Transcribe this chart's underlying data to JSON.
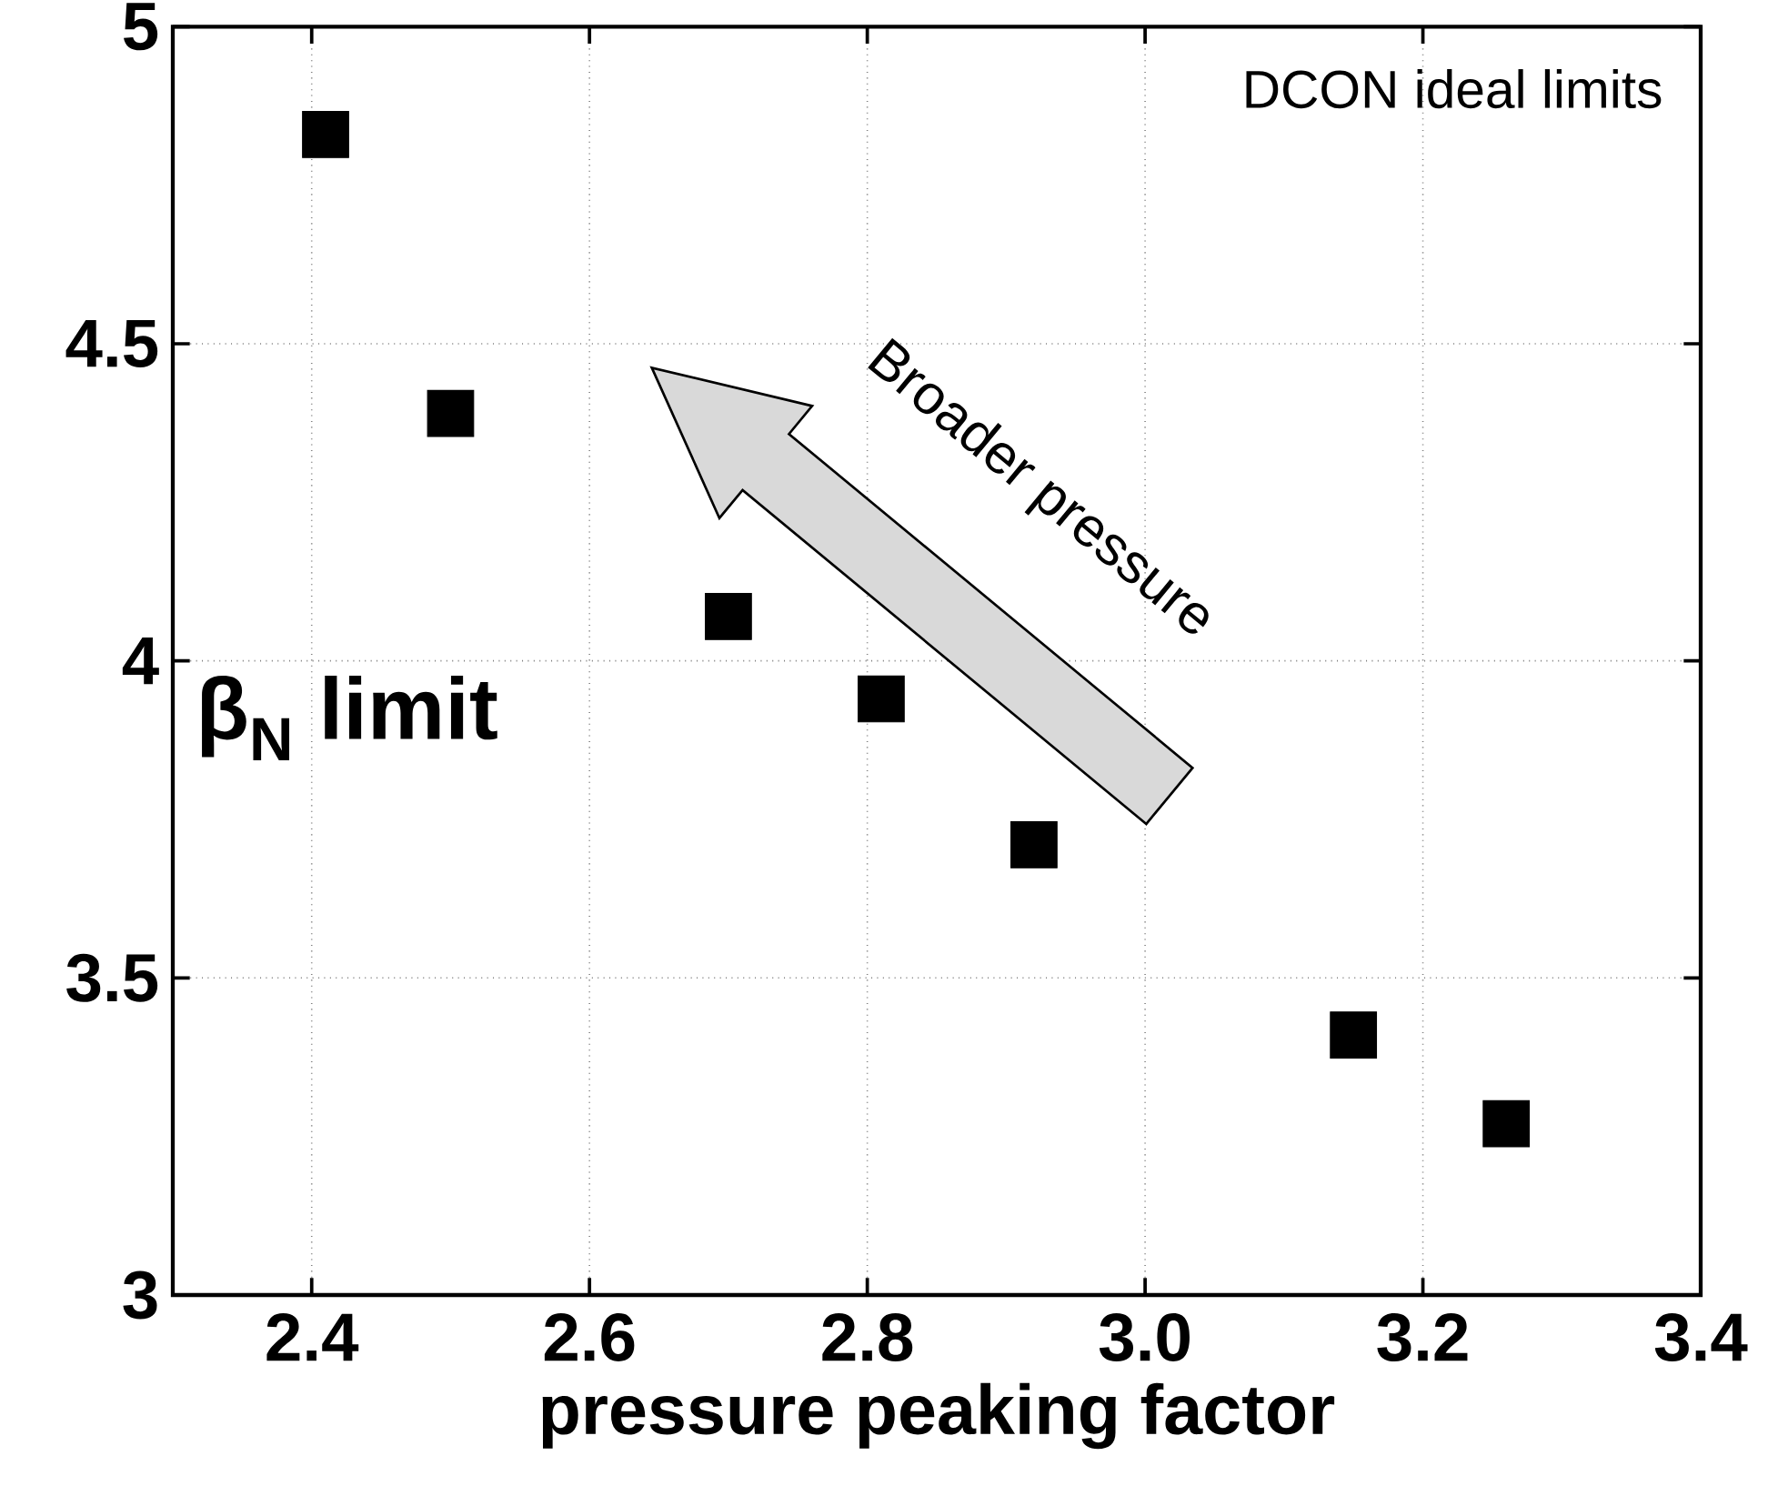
{
  "chart_data": {
    "type": "scatter",
    "xlabel": "pressure peaking factor",
    "ylabel": "β$_{N}$ limit",
    "annotations": [
      "DCON ideal limits",
      "Broader pressure"
    ],
    "x": [
      2.41,
      2.5,
      2.7,
      2.81,
      2.92,
      3.15,
      3.26
    ],
    "series": [
      {
        "color": "#000000",
        "values": [
          4.83,
          4.39,
          4.07,
          3.94,
          3.71,
          3.41,
          3.27
        ]
      }
    ],
    "marker": "square",
    "grid": true,
    "xlim": [
      2.3,
      3.4
    ],
    "ylim": [
      3,
      5
    ],
    "xticks": [
      2.4,
      2.6,
      2.8,
      {
        "value": 3,
        "label": "3.0"
      },
      3.2,
      3.4
    ],
    "yticks": [
      3,
      3.5,
      4,
      4.5,
      5
    ]
  }
}
